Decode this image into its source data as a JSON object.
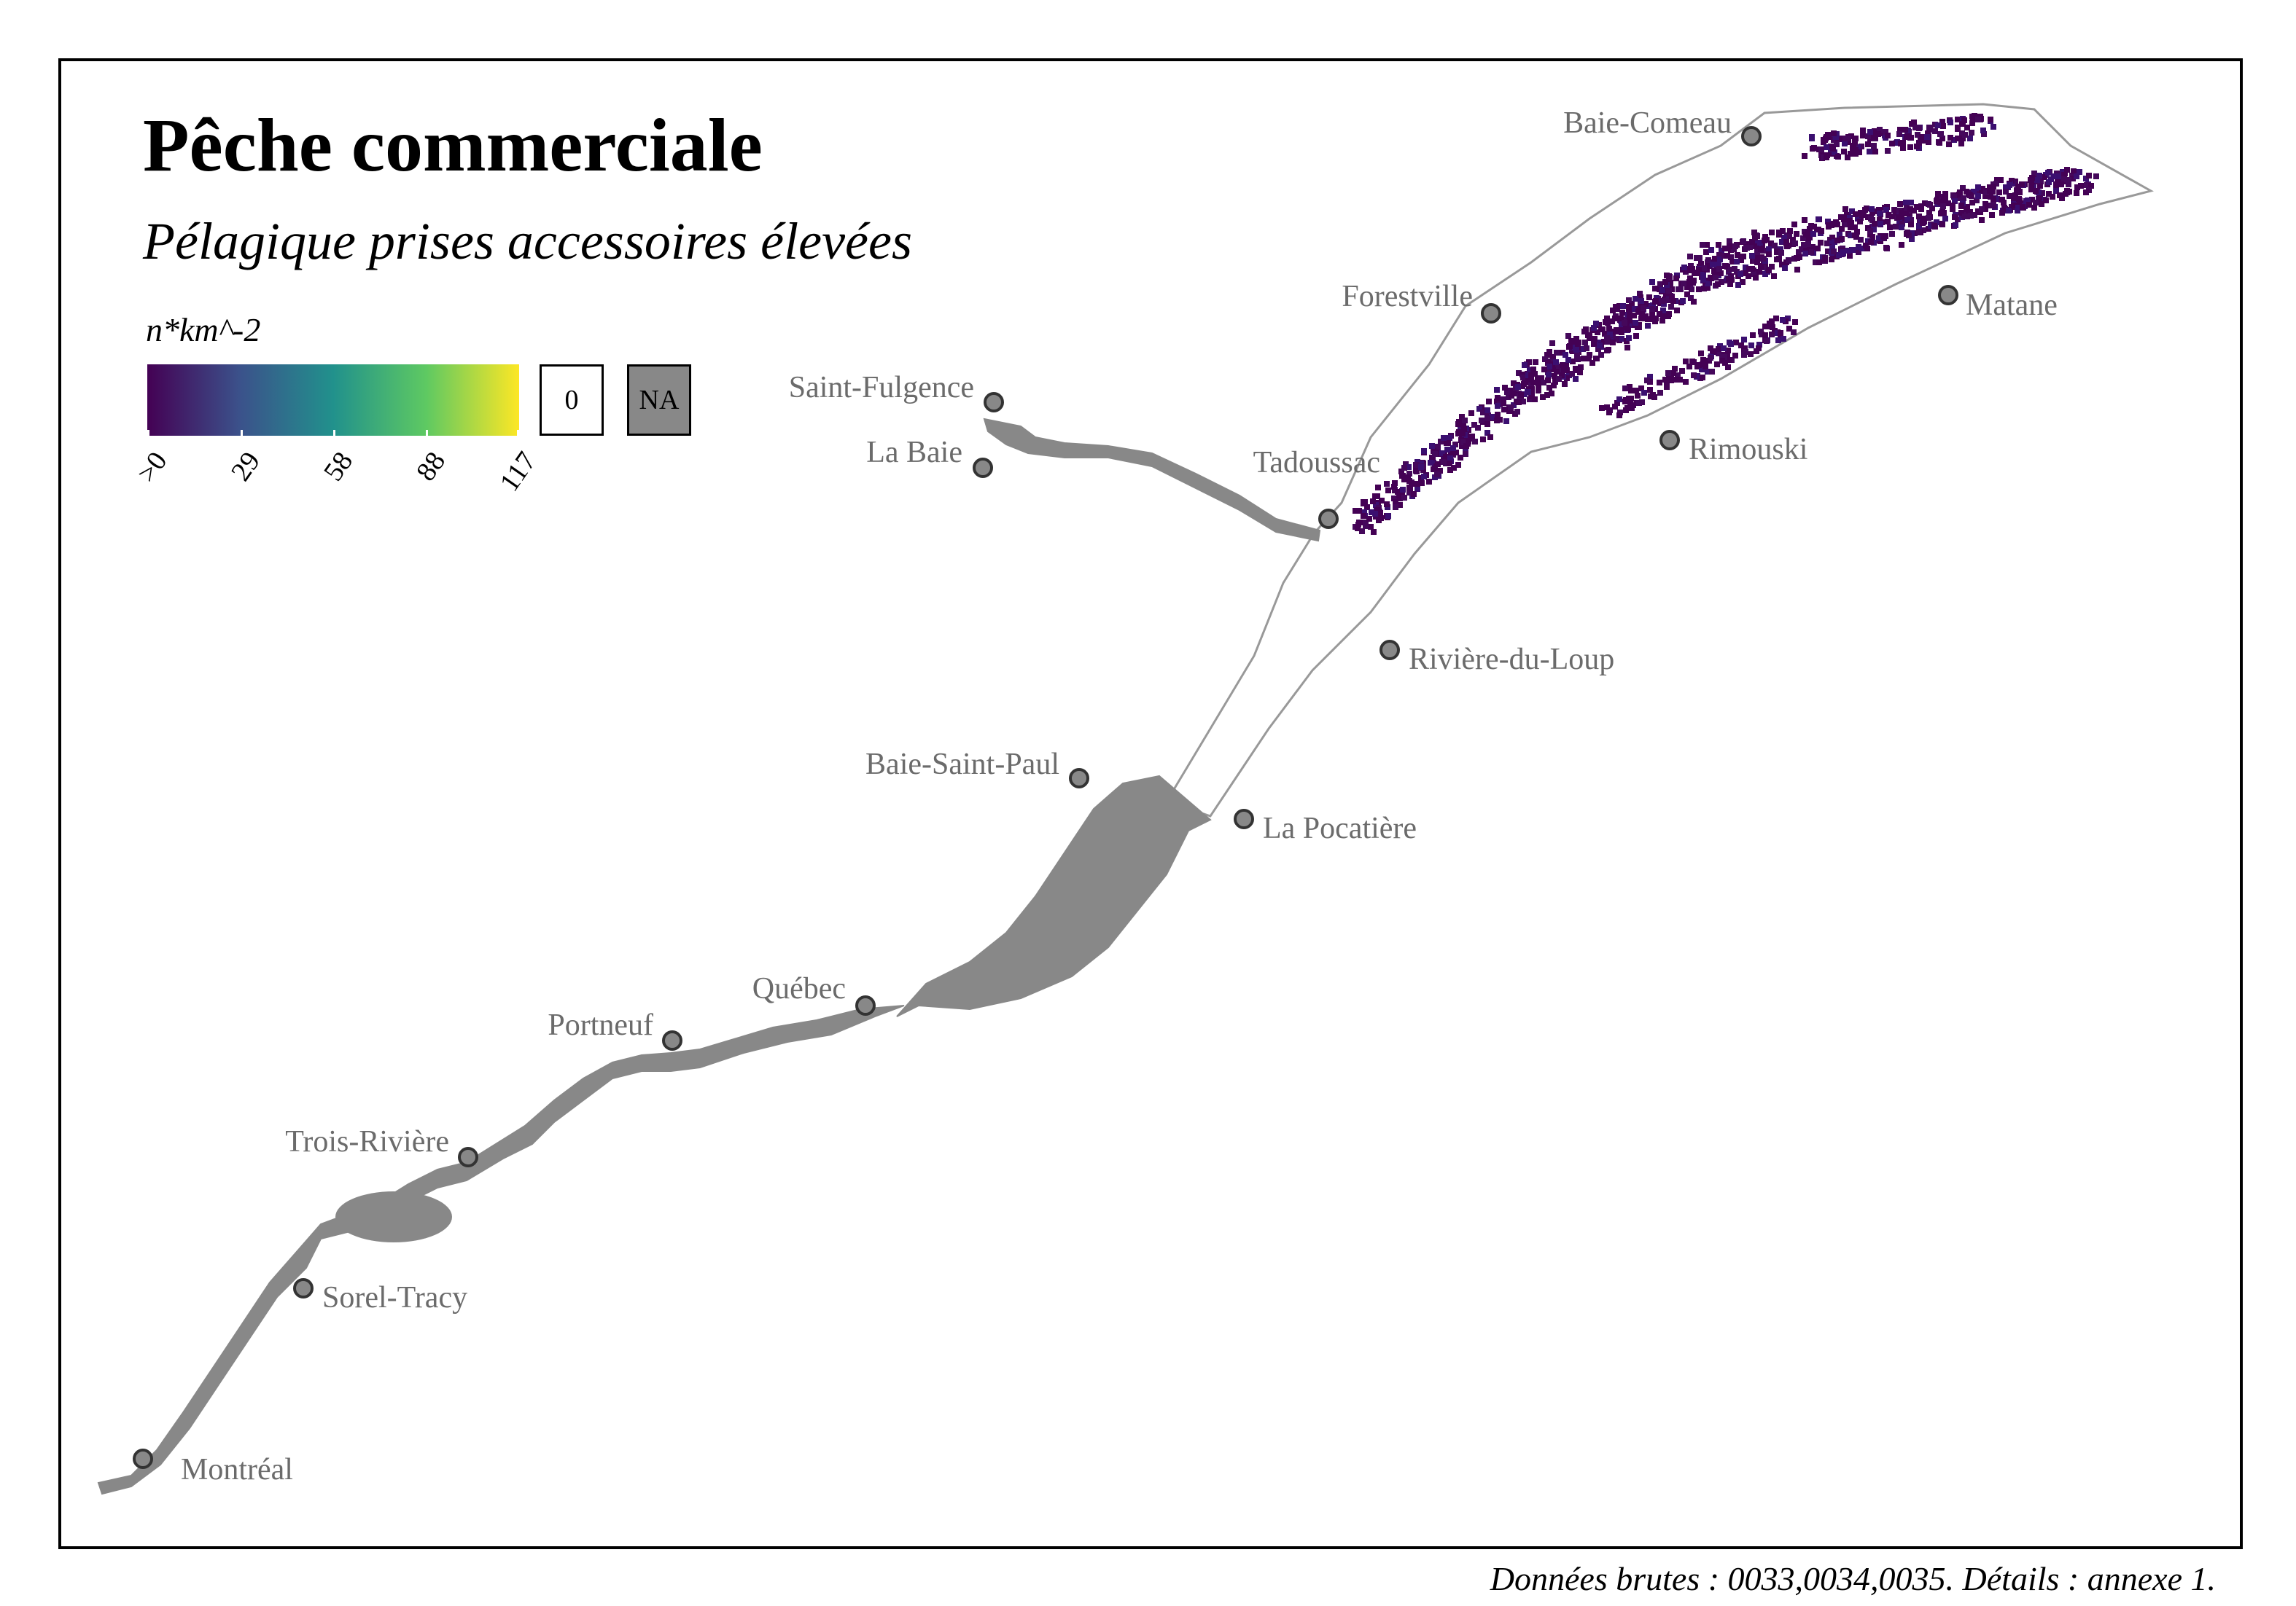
{
  "title": "Pêche commerciale",
  "subtitle": "Pélagique prises accessoires élevées",
  "legend": {
    "title": "n*km^-2",
    "ticks": [
      ">0",
      "29",
      "58",
      "88",
      "117"
    ],
    "tick_values": [
      0,
      29,
      58,
      88,
      117
    ],
    "range": [
      0,
      117
    ],
    "colormap": "viridis",
    "colors": [
      "#440154",
      "#3b528b",
      "#21918c",
      "#5ec962",
      "#fde725"
    ],
    "zero_label": "0",
    "na_label": "NA",
    "na_color": "#888888",
    "zero_color": "#ffffff"
  },
  "colors": {
    "land_river": "#888888",
    "water_outline": "#999999",
    "city_marker": "#888888",
    "city_label": "#6b6b6b",
    "frame": "#000000"
  },
  "cities": [
    {
      "name": "Baie-Comeau"
    },
    {
      "name": "Forestville"
    },
    {
      "name": "Matane"
    },
    {
      "name": "Saint-Fulgence"
    },
    {
      "name": "La Baie"
    },
    {
      "name": "Tadoussac"
    },
    {
      "name": "Rimouski"
    },
    {
      "name": "Rivière-du-Loup"
    },
    {
      "name": "Baie-Saint-Paul"
    },
    {
      "name": "La Pocatière"
    },
    {
      "name": "Québec"
    },
    {
      "name": "Portneuf"
    },
    {
      "name": "Trois-Rivière"
    },
    {
      "name": "Sorel-Tracy"
    },
    {
      "name": "Montréal"
    }
  ],
  "caption": "Données brutes : 0033,0034,0035. Détails : annexe 1."
}
